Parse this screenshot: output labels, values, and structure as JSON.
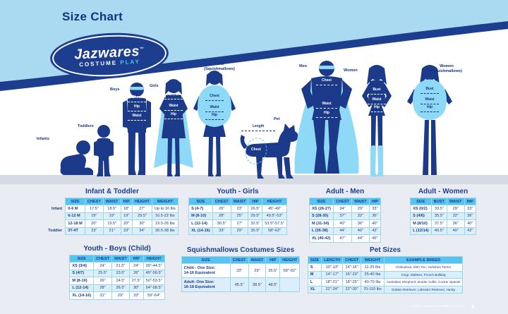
{
  "header": {
    "title": "Size Chart",
    "logo": {
      "name": "Jazwares",
      "tm": "™",
      "sub1": "COSTUME",
      "sub2": "PLAY"
    }
  },
  "figures": {
    "infants": {
      "label": "Infants"
    },
    "toddlers": {
      "label": "Toddlers"
    },
    "boys": {
      "label": "Boys",
      "measures": [
        "Chest",
        "Hip",
        "Waist"
      ]
    },
    "girls": {
      "label": "Girls",
      "measures": [
        "Chest",
        "Waist",
        "Hip"
      ]
    },
    "girls_squish": {
      "label": "Girls\n(Squishmallows)",
      "measures": [
        "Chest",
        "Waist",
        "Hip"
      ]
    },
    "pet": {
      "label": "Pet",
      "measures": [
        "Length",
        "Chest"
      ]
    },
    "men": {
      "label": "Men",
      "measures": [
        "Chest",
        "Waist",
        "Hip"
      ]
    },
    "women": {
      "label": "Women",
      "measures": [
        "Bust",
        "Waist",
        "Hip"
      ]
    },
    "women_squish": {
      "label": "Women\n(Squishmallows)",
      "measures": [
        "Bust",
        "Waist",
        "Hip"
      ]
    }
  },
  "tables": {
    "infant_toddler": {
      "title": "Infant & Toddler",
      "group_col": true,
      "headers": [
        "",
        "SIZE",
        "CHEST",
        "WAIST",
        "HIP",
        "HEIGHT",
        "WEIGHT"
      ],
      "rows": [
        [
          "Infant",
          "0-6 M",
          "17.5\"",
          "18.5\"",
          "18\"",
          "27\"",
          "Up to 16 lbs"
        ],
        [
          "",
          "6-12 M",
          "19\"",
          "19\"",
          "19\"",
          "29.5\"",
          "16.5-22 lbs"
        ],
        [
          "",
          "12-18 M",
          "20\"",
          "19.5\"",
          "20\"",
          "30\"",
          "19.5-26 lbs"
        ],
        [
          "Toddler",
          "3T-4T",
          "23\"",
          "21\"",
          "23\"",
          "34\"",
          "30.5-38 lbs"
        ]
      ]
    },
    "youth_girls": {
      "title": "Youth - Girls",
      "headers": [
        "SIZE",
        "CHEST",
        "WAIST",
        "HIP",
        "HEIGHT"
      ],
      "rows": [
        [
          "S (4-7)",
          "26\"",
          "23\"",
          "26.5\"",
          "45\"-49\""
        ],
        [
          "M (8-10)",
          "28\"",
          "25\"",
          "29.5\"",
          "49.5\"-53\""
        ],
        [
          "L (12-14)",
          "30.5\"",
          "27\"",
          "32.5\"",
          "53.5\"-57.5\""
        ],
        [
          "XL (14-16)",
          "33\"",
          "29\"",
          "35.5\"",
          "58\"-62\""
        ]
      ]
    },
    "adult_men": {
      "title": "Adult - Men",
      "headers": [
        "SIZE",
        "CHEST",
        "WAIST",
        "HIP"
      ],
      "rows": [
        [
          "XS (26-27)",
          "34\"",
          "29\"",
          "33\""
        ],
        [
          "S (28-30)",
          "37\"",
          "32\"",
          "36\""
        ],
        [
          "M (31-34)",
          "40\"",
          "36\"",
          "40\""
        ],
        [
          "L (36-38)",
          "44\"",
          "40\"",
          "42\""
        ],
        [
          "XL (40-42)",
          "47\"",
          "44\"",
          "45\""
        ]
      ]
    },
    "adult_women": {
      "title": "Adult - Women",
      "headers": [
        "SIZE",
        "BUST",
        "WAIST",
        "HIP"
      ],
      "rows": [
        [
          "XS (0/2)",
          "33.5\"",
          "29\"",
          "33\""
        ],
        [
          "S (4/6)",
          "35.5\"",
          "32\"",
          "36\""
        ],
        [
          "M (8/10)",
          "37.5\"",
          "36\"",
          "40\""
        ],
        [
          "L (12/14)",
          "40.5\"",
          "40\"",
          "42\""
        ]
      ]
    },
    "youth_boys": {
      "title": "Youth - Boys (Child)",
      "headers": [
        "SIZE",
        "CHEST",
        "WAIST",
        "HIP",
        "HEIGHT"
      ],
      "rows": [
        [
          "XS (3/4)",
          "24\"",
          "21.5\"",
          "24\"",
          "39\"-44.5\""
        ],
        [
          "S (4/7)",
          "25.5\"",
          "23.5\"",
          "26\"",
          "45\"-50.5\""
        ],
        [
          "M (8-10)",
          "26\"",
          "24.5\"",
          "27.5\"",
          "50\"-53.5\""
        ],
        [
          "L (12-14)",
          "28\"",
          "26.5\"",
          "30\"",
          "54\"-58.5\""
        ],
        [
          "XL (14-16)",
          "31\"",
          "29\"",
          "33\"",
          "59\"-64\""
        ]
      ]
    },
    "squishmallows": {
      "title": "Squishmallows Costumes Sizes",
      "headers": [
        "SIZE",
        "CHEST",
        "WAIST",
        "HIP",
        "HEIGHT"
      ],
      "rows": [
        [
          "Child - One Size:\n14-16 Equivalent",
          "33\"",
          "29\"",
          "35.5\"",
          "58\"-62\""
        ],
        [
          "Adult- One Size:\n16-18 Equivalent",
          "45.5\"",
          "38.5\"",
          "48.5\"",
          ""
        ]
      ]
    },
    "pet_sizes": {
      "title": "Pet Sizes",
      "headers": [
        "SIZE",
        "LENGTH",
        "CHEST",
        "WEIGHT",
        "EXAMPLE BREED"
      ],
      "rows": [
        [
          "S",
          "10\"-13\"",
          "14\"-16\"",
          "11-25 lbs",
          "Chihuahua, Shih Tzu, Yorkshire Terrier"
        ],
        [
          "M",
          "14\"-17\"",
          "16\"-23\"",
          "25-40 lbs",
          "Corgi, Maltese, French Bulldog"
        ],
        [
          "L",
          "18\"-21\"",
          "18\"-25\"",
          "40-70 lbs",
          "Australian Shepherd, Border Collie, Cocker Spaniel"
        ],
        [
          "XL",
          "22\"-24\"",
          "22\"-30\"",
          "70-110 lbs",
          "Golden Retriever, Labrador Retriever, Husky"
        ]
      ]
    }
  },
  "colors": {
    "navy": "#1c3a8a",
    "banner_blue": "#a9daf2",
    "cyan": "#55c4f1",
    "silhouette_accent": "#8ed9f7",
    "table_header": "#55c4f1",
    "bg_gray": "#e9edf3"
  },
  "footer": {
    "copyright": "© 2023 Jazwares. All rights reserved.",
    "page": "4"
  }
}
